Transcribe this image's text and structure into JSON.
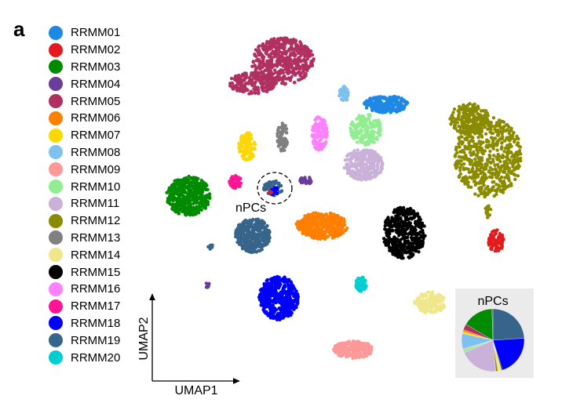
{
  "panel_label": "a",
  "chart_data": {
    "type": "scatter",
    "xlabel": "UMAP1",
    "ylabel": "UMAP2",
    "annotation": "nPCs",
    "legend_placement": "left",
    "legend": [
      {
        "name": "RRMM01",
        "color": "#1E88E5"
      },
      {
        "name": "RRMM02",
        "color": "#E41A1C"
      },
      {
        "name": "RRMM03",
        "color": "#008B00"
      },
      {
        "name": "RRMM04",
        "color": "#6A3D9A"
      },
      {
        "name": "RRMM05",
        "color": "#B03060"
      },
      {
        "name": "RRMM06",
        "color": "#FF7F00"
      },
      {
        "name": "RRMM07",
        "color": "#FFD700"
      },
      {
        "name": "RRMM08",
        "color": "#7EC0EE"
      },
      {
        "name": "RRMM09",
        "color": "#FF9999"
      },
      {
        "name": "RRMM10",
        "color": "#90EE90"
      },
      {
        "name": "RRMM11",
        "color": "#C9B1D9"
      },
      {
        "name": "RRMM12",
        "color": "#8B8B00"
      },
      {
        "name": "RRMM13",
        "color": "#808080"
      },
      {
        "name": "RRMM14",
        "color": "#F0E68C"
      },
      {
        "name": "RRMM15",
        "color": "#000000"
      },
      {
        "name": "RRMM16",
        "color": "#FF80FF"
      },
      {
        "name": "RRMM17",
        "color": "#FF1493"
      },
      {
        "name": "RRMM18",
        "color": "#0000FF"
      },
      {
        "name": "RRMM19",
        "color": "#36648B"
      },
      {
        "name": "RRMM20",
        "color": "#00CED1"
      }
    ],
    "inset_pie": {
      "type": "pie",
      "title": "nPCs",
      "slices": [
        {
          "name": "RRMM19",
          "value": 24
        },
        {
          "name": "RRMM18",
          "value": 21
        },
        {
          "name": "RRMM15",
          "value": 0.5
        },
        {
          "name": "RRMM14",
          "value": 2
        },
        {
          "name": "RRMM12",
          "value": 1
        },
        {
          "name": "RRMM11",
          "value": 20
        },
        {
          "name": "RRMM10",
          "value": 1.5
        },
        {
          "name": "RRMM09",
          "value": 0.5
        },
        {
          "name": "RRMM08",
          "value": 8
        },
        {
          "name": "RRMM07",
          "value": 1
        },
        {
          "name": "RRMM06",
          "value": 1
        },
        {
          "name": "RRMM05",
          "value": 3
        },
        {
          "name": "RRMM03",
          "value": 16
        },
        {
          "name": "RRMM02",
          "value": 0.5
        }
      ]
    }
  }
}
